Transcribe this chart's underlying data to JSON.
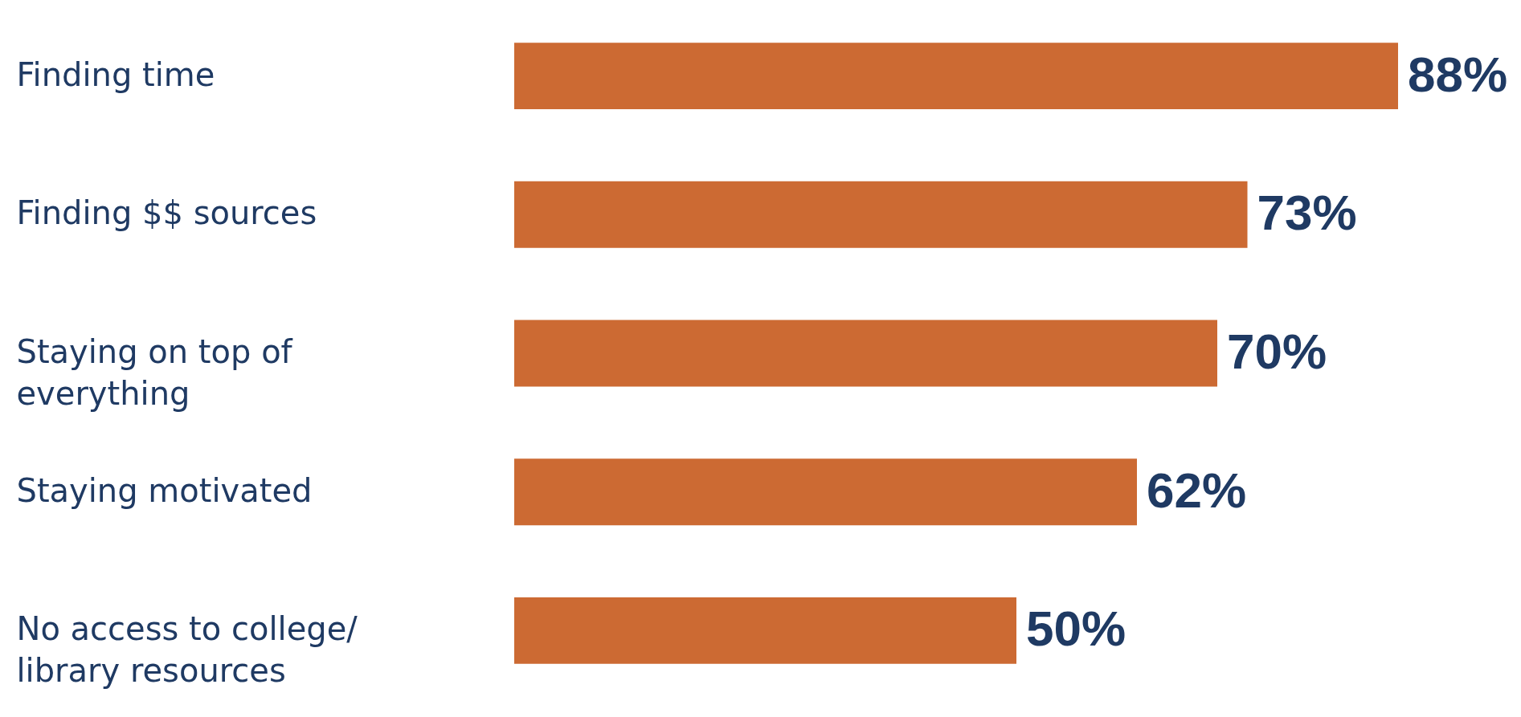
{
  "chart_data": {
    "type": "bar",
    "orientation": "horizontal",
    "categories": [
      "Finding time",
      "Finding $$ sources",
      "Staying on top of everything",
      "Staying motivated",
      "No access to college/ library resources"
    ],
    "values": [
      88,
      73,
      70,
      62,
      50
    ],
    "value_labels": [
      "88%",
      "73%",
      "70%",
      "62%",
      "50%"
    ],
    "color": "#cc6a33"
  }
}
